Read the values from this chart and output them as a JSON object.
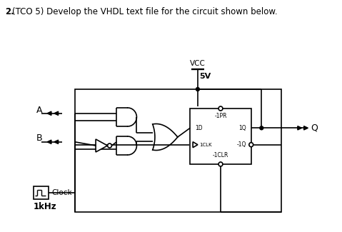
{
  "bg_color": "#ffffff",
  "line_color": "#000000",
  "line_width": 1.2,
  "fig_width": 4.79,
  "fig_height": 3.25,
  "dpi": 100,
  "title_normal": "(TCO 5) Develop the VHDL text file for the circuit shown below.",
  "title_bold": "2.",
  "vcc_label": "VCC",
  "vcc_voltage": "5V",
  "ff_labels": [
    "-1PR",
    "1D",
    "1Q",
    "1CLK",
    "-1Q",
    "-1CLR"
  ],
  "A_label": "A",
  "B_label": "B",
  "Q_label": "Q",
  "clock_label": "Clock",
  "freq_label": "1kHz"
}
